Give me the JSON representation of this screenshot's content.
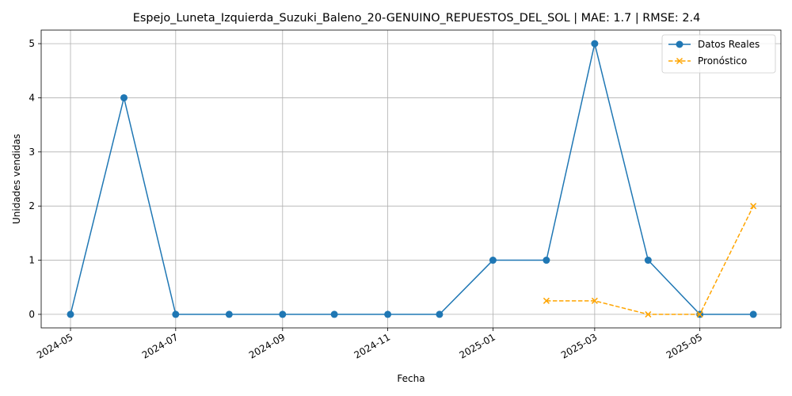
{
  "chart_data": {
    "type": "line",
    "title": "Espejo_Luneta_Izquierda_Suzuki_Baleno_20-GENUINO_REPUESTOS_DEL_SOL | MAE: 1.7 | RMSE: 2.4",
    "xlabel": "Fecha",
    "ylabel": "Unidades vendidas",
    "x_ticks": [
      "2024-05",
      "2024-07",
      "2024-09",
      "2024-11",
      "2025-01",
      "2025-03",
      "2025-05"
    ],
    "y_ticks": [
      "0",
      "1",
      "2",
      "3",
      "4",
      "5"
    ],
    "ylim": [
      -0.25,
      5.25
    ],
    "xlim": [
      "2024-04-14",
      "2025-06-17"
    ],
    "grid": true,
    "legend_position": "top-right",
    "series": [
      {
        "name": "Datos Reales",
        "color": "#1f77b4",
        "style": "solid",
        "marker": "circle",
        "x": [
          "2024-05-01",
          "2024-06-01",
          "2024-07-01",
          "2024-08-01",
          "2024-09-01",
          "2024-10-01",
          "2024-11-01",
          "2024-12-01",
          "2025-01-01",
          "2025-02-01",
          "2025-03-01",
          "2025-04-01",
          "2025-05-01",
          "2025-06-01"
        ],
        "values": [
          0,
          4,
          0,
          0,
          0,
          0,
          0,
          0,
          1,
          1,
          5,
          1,
          0,
          0
        ]
      },
      {
        "name": "Pronóstico",
        "color": "#ffa500",
        "style": "dashed",
        "marker": "x",
        "x": [
          "2025-02-01",
          "2025-03-01",
          "2025-04-01",
          "2025-05-01",
          "2025-06-01"
        ],
        "values": [
          0.25,
          0.25,
          0,
          0,
          2
        ]
      }
    ]
  }
}
